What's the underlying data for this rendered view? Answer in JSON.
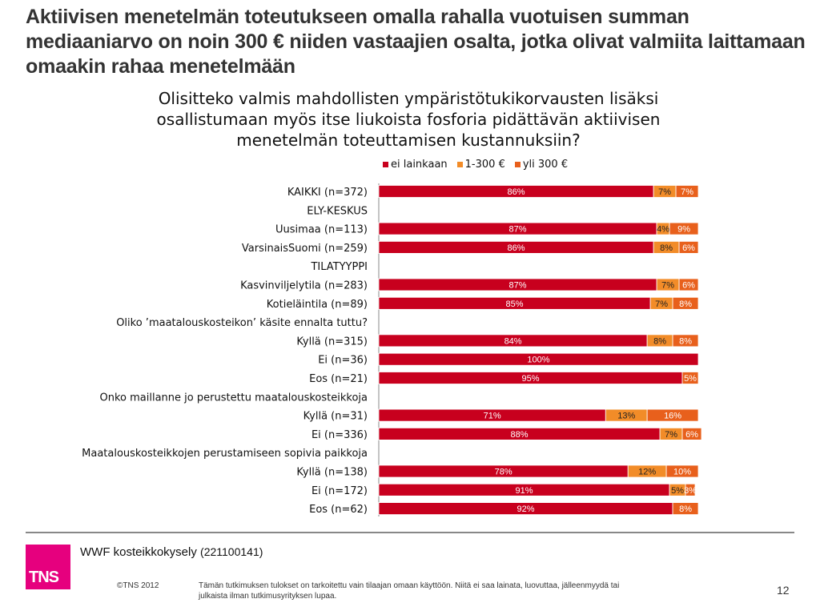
{
  "header": {
    "title": "Aktiivisen menetelmän toteutukseen omalla rahalla vuotuisen summan mediaaniarvo on noin 300 € niiden vastaajien osalta, jotka olivat valmiita laittamaan omaakin rahaa menetelmään"
  },
  "chart_data": {
    "type": "bar",
    "orientation": "horizontal-stacked-100",
    "title": "Olisitteko valmis mahdollisten ympäristötukikorvausten lisäksi osallistumaan myös itse liukoista fosforia pidättävän aktiivisen menetelmän toteuttamisen kustannuksiin?",
    "xlabel": "",
    "ylabel": "",
    "xlim": [
      0,
      100
    ],
    "grid": false,
    "legend_position": "top-right",
    "legend": [
      "ei lainkaan",
      "1-300 €",
      "yli 300 €"
    ],
    "colors": [
      "#c8001e",
      "#f28c28",
      "#e8601c"
    ],
    "categories": [
      "KAIKKI (n=372)",
      "ELY-KESKUS",
      "Uusimaa (n=113)",
      "VarsinaisSuomi (n=259)",
      "TILATYYPPI",
      "Kasvinviljelytila (n=283)",
      "Kotieläintila (n=89)",
      "Oliko ’maatalouskosteikon’ käsite ennalta tuttu?",
      "Kyllä (n=315)",
      "Ei (n=36)",
      "Eos (n=21)",
      "Onko maillanne jo perustettu maatalouskosteikkoja",
      "Kyllä (n=31)",
      "Ei (n=336)",
      "Maatalouskosteikkojen perustamiseen sopivia paikkoja",
      "Kyllä (n=138)",
      "Ei (n=172)",
      "Eos (n=62)"
    ],
    "series": [
      {
        "name": "ei lainkaan",
        "values": [
          86,
          null,
          87,
          86,
          null,
          87,
          85,
          null,
          84,
          100,
          95,
          null,
          71,
          88,
          null,
          78,
          91,
          92
        ]
      },
      {
        "name": "1-300 €",
        "values": [
          7,
          null,
          4,
          8,
          null,
          7,
          7,
          null,
          8,
          0,
          0,
          null,
          13,
          7,
          null,
          12,
          5,
          0
        ]
      },
      {
        "name": "yli 300 €",
        "values": [
          7,
          null,
          9,
          6,
          null,
          6,
          8,
          null,
          8,
          0,
          5,
          null,
          16,
          6,
          null,
          10,
          3,
          8
        ]
      }
    ]
  },
  "footer": {
    "survey": "WWF kosteikkokysely",
    "survey_code": "(221100141)",
    "logo": "TNS",
    "copyright": "©TNS 2012",
    "disclaimer": "Tämän tutkimuksen tulokset on tarkoitettu vain tilaajan omaan käyttöön. Niitä ei saa  lainata, luovuttaa, jälleenmyydä tai julkaista ilman tutkimusyrityksen lupaa.",
    "page_number": "12"
  }
}
